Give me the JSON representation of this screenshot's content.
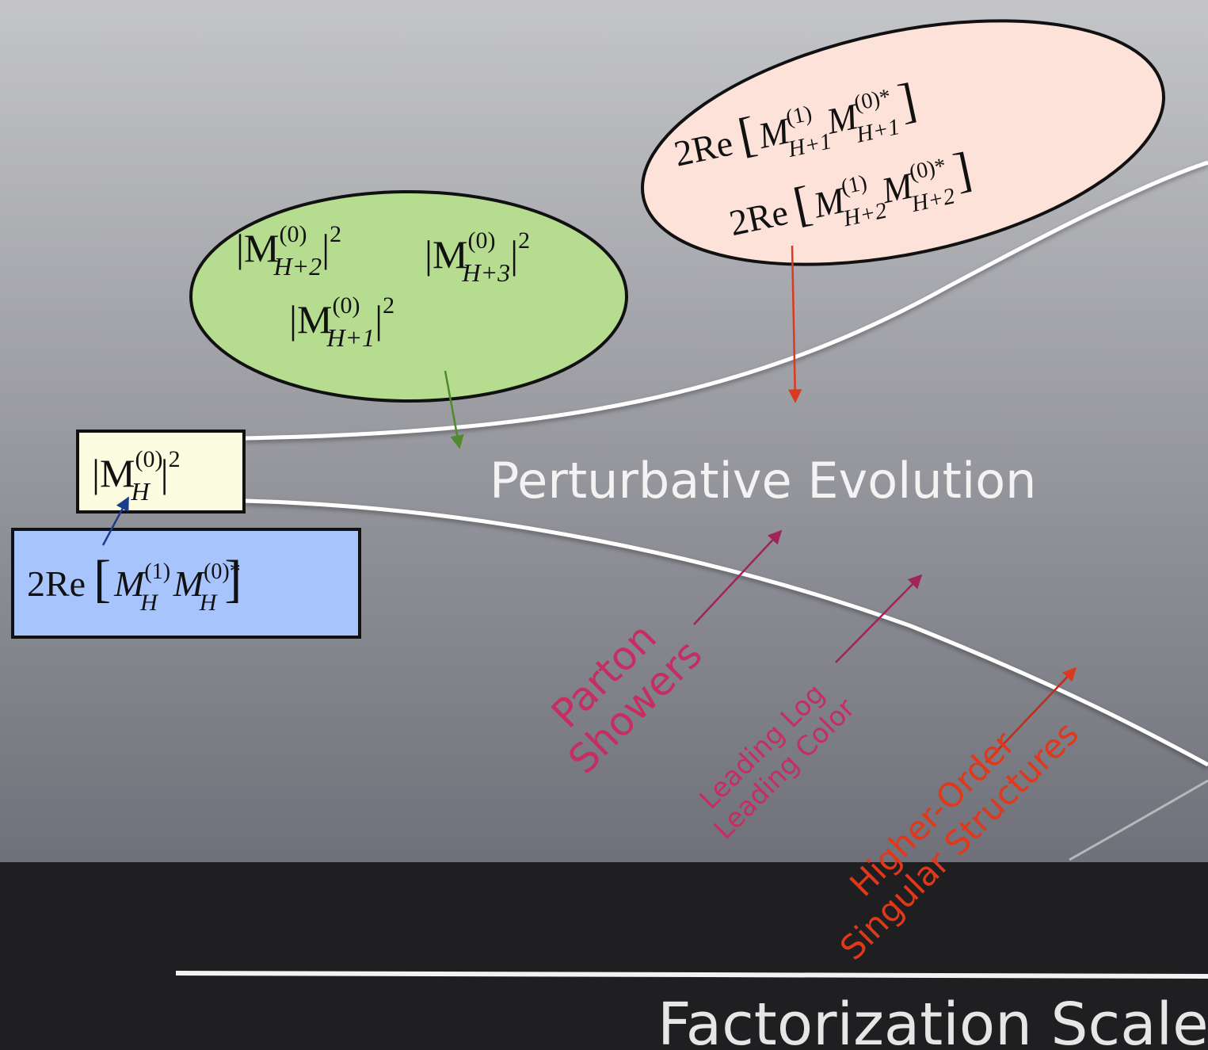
{
  "colors": {
    "background_top": "#c4c5c8",
    "background_bottom": "#6f7079",
    "bottom_band": "#1f1f21",
    "green_ellipse": "#b5dc8f",
    "pink_ellipse": "#fde2d9",
    "yellow_box": "#fcfde0",
    "blue_box": "#a8c4fc",
    "shower_label": "#c62e62",
    "higher_order_label": "#e0381b",
    "green_arrow": "#4f8a2c",
    "red_arrow": "#d93a21",
    "blue_arrow": "#1a3e8a"
  },
  "title": "Perturbative Evolution",
  "axis_label": "Factorization Scale",
  "boxes": {
    "born": {
      "M": "|M",
      "sup": "(0)",
      "sub": "H",
      "tail": "|",
      "power": "2"
    },
    "virtual": {
      "prefix": "2Re",
      "M1": "M",
      "sup1": "(1)",
      "sub1": "H",
      "M2": "M",
      "sup2": "(0)*",
      "sub2": "H"
    }
  },
  "green_ellipse": {
    "terms": [
      {
        "M": "|M",
        "sup": "(0)",
        "sub": "H+2",
        "tail": "|",
        "power": "2"
      },
      {
        "M": "|M",
        "sup": "(0)",
        "sub": "H+3",
        "tail": "|",
        "power": "2"
      },
      {
        "M": "|M",
        "sup": "(0)",
        "sub": "H+1",
        "tail": "|",
        "power": "2"
      }
    ]
  },
  "pink_ellipse": {
    "terms": [
      {
        "prefix": "2Re",
        "M1": "M",
        "sup1": "(1)",
        "sub1": "H+1",
        "M2": "M",
        "sup2": "(0)*",
        "sub2": "H+1"
      },
      {
        "prefix": "2Re",
        "M1": "M",
        "sup1": "(1)",
        "sub1": "H+2",
        "M2": "M",
        "sup2": "(0)*",
        "sub2": "H+2"
      }
    ]
  },
  "labels": {
    "parton_showers": [
      "Parton",
      "Showers"
    ],
    "leading": [
      "Leading Log",
      "Leading Color"
    ],
    "higher_order": [
      "Higher-Order",
      "Singular Structures"
    ]
  }
}
